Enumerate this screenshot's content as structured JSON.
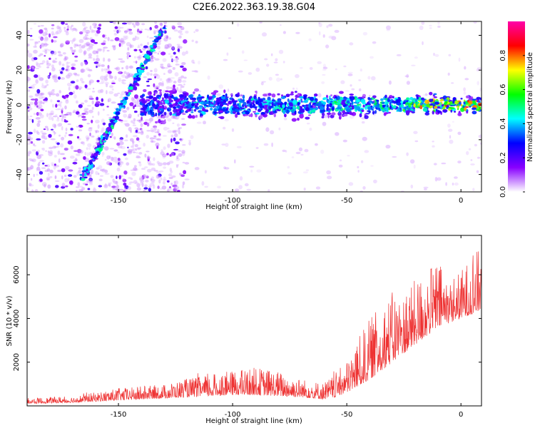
{
  "title": "C2E6.2022.363.19.38.G04",
  "chart_data": [
    {
      "type": "heatmap",
      "xlabel": "Height of straight line (km)",
      "ylabel": "Frequency (Hz)",
      "xlim": [
        -190,
        9
      ],
      "ylim": [
        -50,
        48
      ],
      "xticks": [
        -150,
        -100,
        -50,
        0
      ],
      "xticklabels": [
        "-150",
        "-100",
        "-50",
        "0"
      ],
      "yticks": [
        -40,
        -20,
        0,
        20,
        40
      ],
      "yticklabels": [
        "-40",
        "-20",
        "0",
        "20",
        "40"
      ],
      "grid": false,
      "colorbar": {
        "label": "Normalized spectral amplitude",
        "range": [
          0,
          1
        ],
        "ticks": [
          0.0,
          0.2,
          0.4,
          0.6,
          0.8
        ],
        "ticklabels": [
          "0.0",
          "0.2",
          "0.4",
          "0.6",
          "0.8"
        ],
        "colors": [
          "#ffffff",
          "#8800ff",
          "#0000ff",
          "#00ffff",
          "#00ff00",
          "#ffff00",
          "#ff0000",
          "#ff00aa"
        ]
      },
      "features": {
        "diagonal_track": {
          "from": [
            -166,
            -43
          ],
          "to": [
            -130,
            45
          ],
          "peak_amplitude": 0.4
        },
        "horizontal_band": {
          "x_range": [
            -140,
            9
          ],
          "center_hz": 0,
          "half_width_hz": 5,
          "peak_amplitude": 0.9
        },
        "noise_region": {
          "x_range": [
            -190,
            -120
          ],
          "amplitude": 0.15
        }
      }
    },
    {
      "type": "line",
      "xlabel": "Height of straight line (km)",
      "ylabel": "SNR (10 * v/v)",
      "xlim": [
        -190,
        9
      ],
      "ylim": [
        0,
        7800
      ],
      "xticks": [
        -150,
        -100,
        -50,
        0
      ],
      "xticklabels": [
        "-150",
        "-100",
        "-50",
        "0"
      ],
      "yticks": [
        2000,
        4000,
        6000
      ],
      "yticklabels": [
        "2000",
        "4000",
        "6000"
      ],
      "color": "#ee3333",
      "grid": false,
      "envelope": {
        "x": [
          -190,
          -170,
          -160,
          -150,
          -140,
          -130,
          -120,
          -110,
          -100,
          -95,
          -90,
          -80,
          -70,
          -65,
          -60,
          -55,
          -50,
          -45,
          -40,
          -35,
          -30,
          -25,
          -20,
          -15,
          -10,
          -5,
          0,
          5,
          9
        ],
        "low": [
          100,
          150,
          200,
          250,
          300,
          350,
          400,
          450,
          500,
          500,
          500,
          450,
          400,
          350,
          300,
          400,
          600,
          900,
          1200,
          1600,
          2000,
          2400,
          2800,
          3200,
          3600,
          3800,
          4000,
          4200,
          4400
        ],
        "high": [
          400,
          500,
          700,
          900,
          1000,
          1100,
          1400,
          1600,
          1800,
          1900,
          2000,
          1800,
          1400,
          1300,
          1200,
          1700,
          2300,
          3500,
          4500,
          5200,
          5800,
          5600,
          6300,
          6800,
          7200,
          6200,
          6600,
          7400,
          7800
        ]
      }
    }
  ]
}
